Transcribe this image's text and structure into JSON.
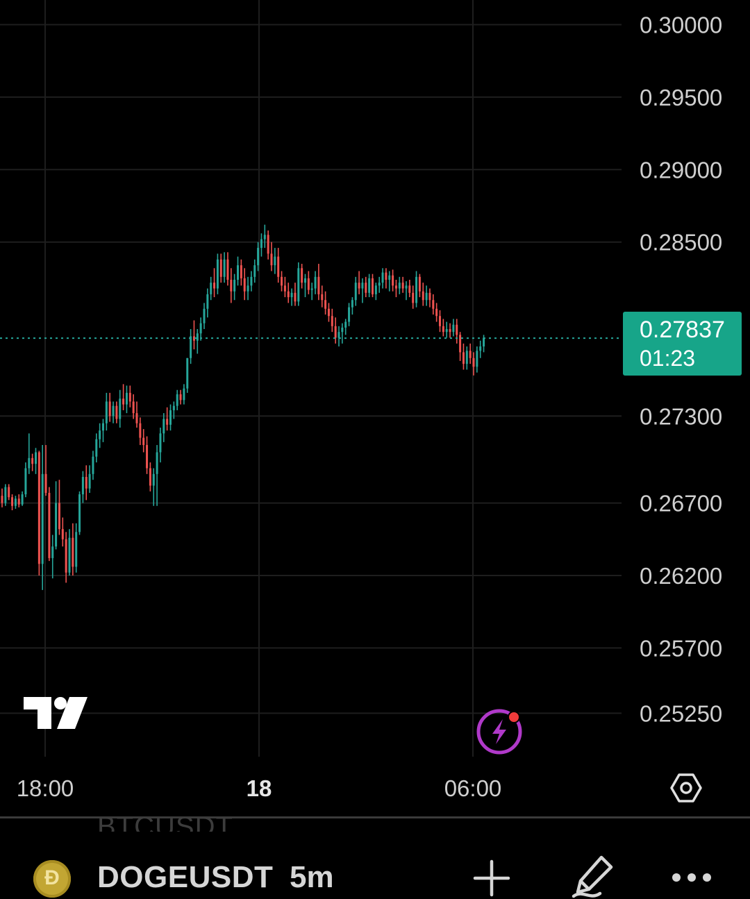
{
  "chart_data": {
    "type": "candlestick",
    "symbol": "DOGEUSDT",
    "interval": "5m",
    "price_ticks": [
      "0.30000",
      "0.29500",
      "0.29000",
      "0.28500",
      "0.27300",
      "0.26700",
      "0.26200",
      "0.25700",
      "0.25250"
    ],
    "time_ticks": [
      "18:00",
      "18",
      "06:00"
    ],
    "last_price": "0.27837",
    "countdown": "01:23",
    "ylim": [
      0.2495,
      0.3017
    ],
    "colors": {
      "up": "#26a69a",
      "down": "#ef5350",
      "badge": "#17a589",
      "grid": "#1e1e1e"
    },
    "candles": [
      [
        0.2675,
        0.268,
        0.2667,
        0.267
      ],
      [
        0.267,
        0.2683,
        0.2668,
        0.2681
      ],
      [
        0.2681,
        0.2683,
        0.2672,
        0.2674
      ],
      [
        0.2674,
        0.2676,
        0.2665,
        0.2668
      ],
      [
        0.2668,
        0.2675,
        0.2666,
        0.2673
      ],
      [
        0.2673,
        0.2676,
        0.2667,
        0.2669
      ],
      [
        0.2669,
        0.2678,
        0.2668,
        0.2676
      ],
      [
        0.2676,
        0.2698,
        0.2674,
        0.2694
      ],
      [
        0.2694,
        0.2718,
        0.269,
        0.2701
      ],
      [
        0.2701,
        0.2704,
        0.2692,
        0.2697
      ],
      [
        0.2697,
        0.2708,
        0.269,
        0.2705
      ],
      [
        0.2705,
        0.2706,
        0.262,
        0.2628
      ],
      [
        0.2628,
        0.271,
        0.261,
        0.269
      ],
      [
        0.269,
        0.271,
        0.2675,
        0.2677
      ],
      [
        0.2677,
        0.2681,
        0.263,
        0.2632
      ],
      [
        0.2632,
        0.2648,
        0.2618,
        0.264
      ],
      [
        0.264,
        0.2685,
        0.2638,
        0.267
      ],
      [
        0.267,
        0.2686,
        0.2648,
        0.2652
      ],
      [
        0.2652,
        0.266,
        0.264,
        0.2645
      ],
      [
        0.2645,
        0.265,
        0.2615,
        0.2622
      ],
      [
        0.2622,
        0.2652,
        0.262,
        0.2646
      ],
      [
        0.2646,
        0.2656,
        0.262,
        0.2626
      ],
      [
        0.2626,
        0.2656,
        0.2622,
        0.265
      ],
      [
        0.265,
        0.2678,
        0.2648,
        0.2676
      ],
      [
        0.2676,
        0.2692,
        0.267,
        0.2688
      ],
      [
        0.2688,
        0.2696,
        0.2672,
        0.268
      ],
      [
        0.268,
        0.2696,
        0.2677,
        0.269
      ],
      [
        0.269,
        0.2706,
        0.2686,
        0.2702
      ],
      [
        0.2702,
        0.2718,
        0.2698,
        0.2714
      ],
      [
        0.2714,
        0.2725,
        0.2708,
        0.272
      ],
      [
        0.272,
        0.2728,
        0.2712,
        0.2725
      ],
      [
        0.2725,
        0.2746,
        0.272,
        0.274
      ],
      [
        0.274,
        0.2746,
        0.2726,
        0.273
      ],
      [
        0.273,
        0.274,
        0.2725,
        0.2737
      ],
      [
        0.2737,
        0.274,
        0.2725,
        0.2728
      ],
      [
        0.2728,
        0.2748,
        0.2722,
        0.2742
      ],
      [
        0.2742,
        0.2752,
        0.2734,
        0.2738
      ],
      [
        0.2738,
        0.2751,
        0.2732,
        0.2746
      ],
      [
        0.2746,
        0.2751,
        0.2736,
        0.274
      ],
      [
        0.274,
        0.2745,
        0.2728,
        0.2732
      ],
      [
        0.2732,
        0.274,
        0.2722,
        0.2725
      ],
      [
        0.2725,
        0.2729,
        0.271,
        0.2715
      ],
      [
        0.2715,
        0.2721,
        0.2705,
        0.271
      ],
      [
        0.271,
        0.2716,
        0.269,
        0.2694
      ],
      [
        0.2694,
        0.2698,
        0.2678,
        0.2682
      ],
      [
        0.2682,
        0.2694,
        0.2668,
        0.269
      ],
      [
        0.269,
        0.271,
        0.2668,
        0.2705
      ],
      [
        0.2705,
        0.2722,
        0.2698,
        0.2718
      ],
      [
        0.2718,
        0.2732,
        0.2712,
        0.2728
      ],
      [
        0.2728,
        0.2736,
        0.272,
        0.2724
      ],
      [
        0.2724,
        0.2738,
        0.272,
        0.2734
      ],
      [
        0.2734,
        0.274,
        0.2728,
        0.2737
      ],
      [
        0.2737,
        0.2748,
        0.2734,
        0.2745
      ],
      [
        0.2745,
        0.2748,
        0.2738,
        0.2741
      ],
      [
        0.2741,
        0.2752,
        0.2738,
        0.2749
      ],
      [
        0.2749,
        0.277,
        0.2746,
        0.277
      ],
      [
        0.277,
        0.279,
        0.2766,
        0.2785
      ],
      [
        0.2785,
        0.2796,
        0.2776,
        0.2782
      ],
      [
        0.2782,
        0.279,
        0.2773,
        0.2787
      ],
      [
        0.2787,
        0.2798,
        0.2782,
        0.2794
      ],
      [
        0.2794,
        0.2808,
        0.279,
        0.2804
      ],
      [
        0.2804,
        0.2818,
        0.2798,
        0.2814
      ],
      [
        0.2814,
        0.2826,
        0.281,
        0.2822
      ],
      [
        0.2822,
        0.2832,
        0.2812,
        0.2818
      ],
      [
        0.2818,
        0.2842,
        0.2814,
        0.2838
      ],
      [
        0.2838,
        0.2842,
        0.2822,
        0.2826
      ],
      [
        0.2826,
        0.2843,
        0.2822,
        0.2838
      ],
      [
        0.2838,
        0.2843,
        0.282,
        0.2824
      ],
      [
        0.2824,
        0.2832,
        0.2808,
        0.2816
      ],
      [
        0.2816,
        0.2828,
        0.281,
        0.2824
      ],
      [
        0.2824,
        0.284,
        0.282,
        0.2834
      ],
      [
        0.2834,
        0.2838,
        0.282,
        0.2825
      ],
      [
        0.2825,
        0.2832,
        0.281,
        0.2816
      ],
      [
        0.2816,
        0.2826,
        0.281,
        0.282
      ],
      [
        0.282,
        0.283,
        0.2816,
        0.2826
      ],
      [
        0.2826,
        0.2838,
        0.2822,
        0.2834
      ],
      [
        0.2834,
        0.285,
        0.283,
        0.2846
      ],
      [
        0.2846,
        0.2856,
        0.284,
        0.2852
      ],
      [
        0.2852,
        0.2862,
        0.2846,
        0.2855
      ],
      [
        0.2855,
        0.2858,
        0.2838,
        0.2842
      ],
      [
        0.2842,
        0.285,
        0.283,
        0.2834
      ],
      [
        0.2834,
        0.2846,
        0.2828,
        0.284
      ],
      [
        0.284,
        0.2846,
        0.2822,
        0.2826
      ],
      [
        0.2826,
        0.283,
        0.2816,
        0.282
      ],
      [
        0.282,
        0.2826,
        0.2812,
        0.2816
      ],
      [
        0.2816,
        0.2822,
        0.2808,
        0.2812
      ],
      [
        0.2812,
        0.2818,
        0.2806,
        0.2815
      ],
      [
        0.2815,
        0.2822,
        0.2806,
        0.2809
      ],
      [
        0.2809,
        0.2836,
        0.2806,
        0.2832
      ],
      [
        0.2832,
        0.2835,
        0.2818,
        0.2822
      ],
      [
        0.2822,
        0.2828,
        0.2812,
        0.2825
      ],
      [
        0.2825,
        0.283,
        0.2814,
        0.2817
      ],
      [
        0.2817,
        0.2822,
        0.281,
        0.2818
      ],
      [
        0.2818,
        0.283,
        0.2814,
        0.2826
      ],
      [
        0.2826,
        0.2835,
        0.281,
        0.2814
      ],
      [
        0.2814,
        0.282,
        0.2805,
        0.281
      ],
      [
        0.281,
        0.2816,
        0.28,
        0.2804
      ],
      [
        0.2804,
        0.2808,
        0.2795,
        0.2799
      ],
      [
        0.2799,
        0.2804,
        0.2788,
        0.2792
      ],
      [
        0.2792,
        0.2798,
        0.278,
        0.2784
      ],
      [
        0.2784,
        0.2792,
        0.2778,
        0.2788
      ],
      [
        0.2788,
        0.2794,
        0.278,
        0.2791
      ],
      [
        0.2791,
        0.2797,
        0.2786,
        0.2795
      ],
      [
        0.2795,
        0.2808,
        0.2792,
        0.2805
      ],
      [
        0.2805,
        0.2812,
        0.28,
        0.281
      ],
      [
        0.281,
        0.2826,
        0.2806,
        0.2822
      ],
      [
        0.2822,
        0.283,
        0.2814,
        0.2818
      ],
      [
        0.2818,
        0.2825,
        0.2808,
        0.2822
      ],
      [
        0.2822,
        0.2826,
        0.2812,
        0.2815
      ],
      [
        0.2815,
        0.2828,
        0.2812,
        0.2825
      ],
      [
        0.2825,
        0.2828,
        0.2812,
        0.2814
      ],
      [
        0.2814,
        0.2822,
        0.281,
        0.282
      ],
      [
        0.282,
        0.2826,
        0.2815,
        0.2822
      ],
      [
        0.2822,
        0.2832,
        0.2818,
        0.2829
      ],
      [
        0.2829,
        0.2832,
        0.2818,
        0.2824
      ],
      [
        0.2824,
        0.283,
        0.2816,
        0.2827
      ],
      [
        0.2827,
        0.2831,
        0.2816,
        0.282
      ],
      [
        0.282,
        0.2824,
        0.2812,
        0.2818
      ],
      [
        0.2818,
        0.2826,
        0.2814,
        0.2822
      ],
      [
        0.2822,
        0.2826,
        0.2815,
        0.2818
      ],
      [
        0.2818,
        0.2823,
        0.281,
        0.282
      ],
      [
        0.282,
        0.2824,
        0.2812,
        0.2815
      ],
      [
        0.2815,
        0.282,
        0.2804,
        0.2808
      ],
      [
        0.2808,
        0.283,
        0.2805,
        0.2826
      ],
      [
        0.2826,
        0.2828,
        0.2812,
        0.2816
      ],
      [
        0.2816,
        0.2822,
        0.2806,
        0.281
      ],
      [
        0.281,
        0.282,
        0.2806,
        0.2815
      ],
      [
        0.2815,
        0.2818,
        0.2805,
        0.281
      ],
      [
        0.281,
        0.2814,
        0.28,
        0.2804
      ],
      [
        0.2804,
        0.2808,
        0.2795,
        0.2799
      ],
      [
        0.2799,
        0.2803,
        0.2788,
        0.2792
      ],
      [
        0.2792,
        0.2797,
        0.2785,
        0.2788
      ],
      [
        0.2788,
        0.2795,
        0.2784,
        0.279
      ],
      [
        0.279,
        0.2794,
        0.2784,
        0.2788
      ],
      [
        0.2788,
        0.2797,
        0.2785,
        0.2793
      ],
      [
        0.2793,
        0.2797,
        0.278,
        0.2786
      ],
      [
        0.2786,
        0.2788,
        0.2768,
        0.2774
      ],
      [
        0.2774,
        0.278,
        0.2762,
        0.2766
      ],
      [
        0.2766,
        0.2778,
        0.2762,
        0.2775
      ],
      [
        0.2775,
        0.278,
        0.2766,
        0.277
      ],
      [
        0.277,
        0.2774,
        0.2758,
        0.2764
      ],
      [
        0.2764,
        0.2778,
        0.276,
        0.2775
      ],
      [
        0.2775,
        0.2782,
        0.277,
        0.2778
      ],
      [
        0.2778,
        0.2786,
        0.2774,
        0.2784
      ]
    ]
  },
  "toolbar": {
    "coin_glyph": "Ð",
    "symbol": "DOGEUSDT",
    "interval": "5m",
    "ghost_symbol": "BTCUSDT"
  },
  "icons": [
    "tradingview-logo-icon",
    "lightning-icon",
    "settings-hexagon-icon",
    "plus-icon",
    "pencil-icon",
    "more-icon"
  ]
}
